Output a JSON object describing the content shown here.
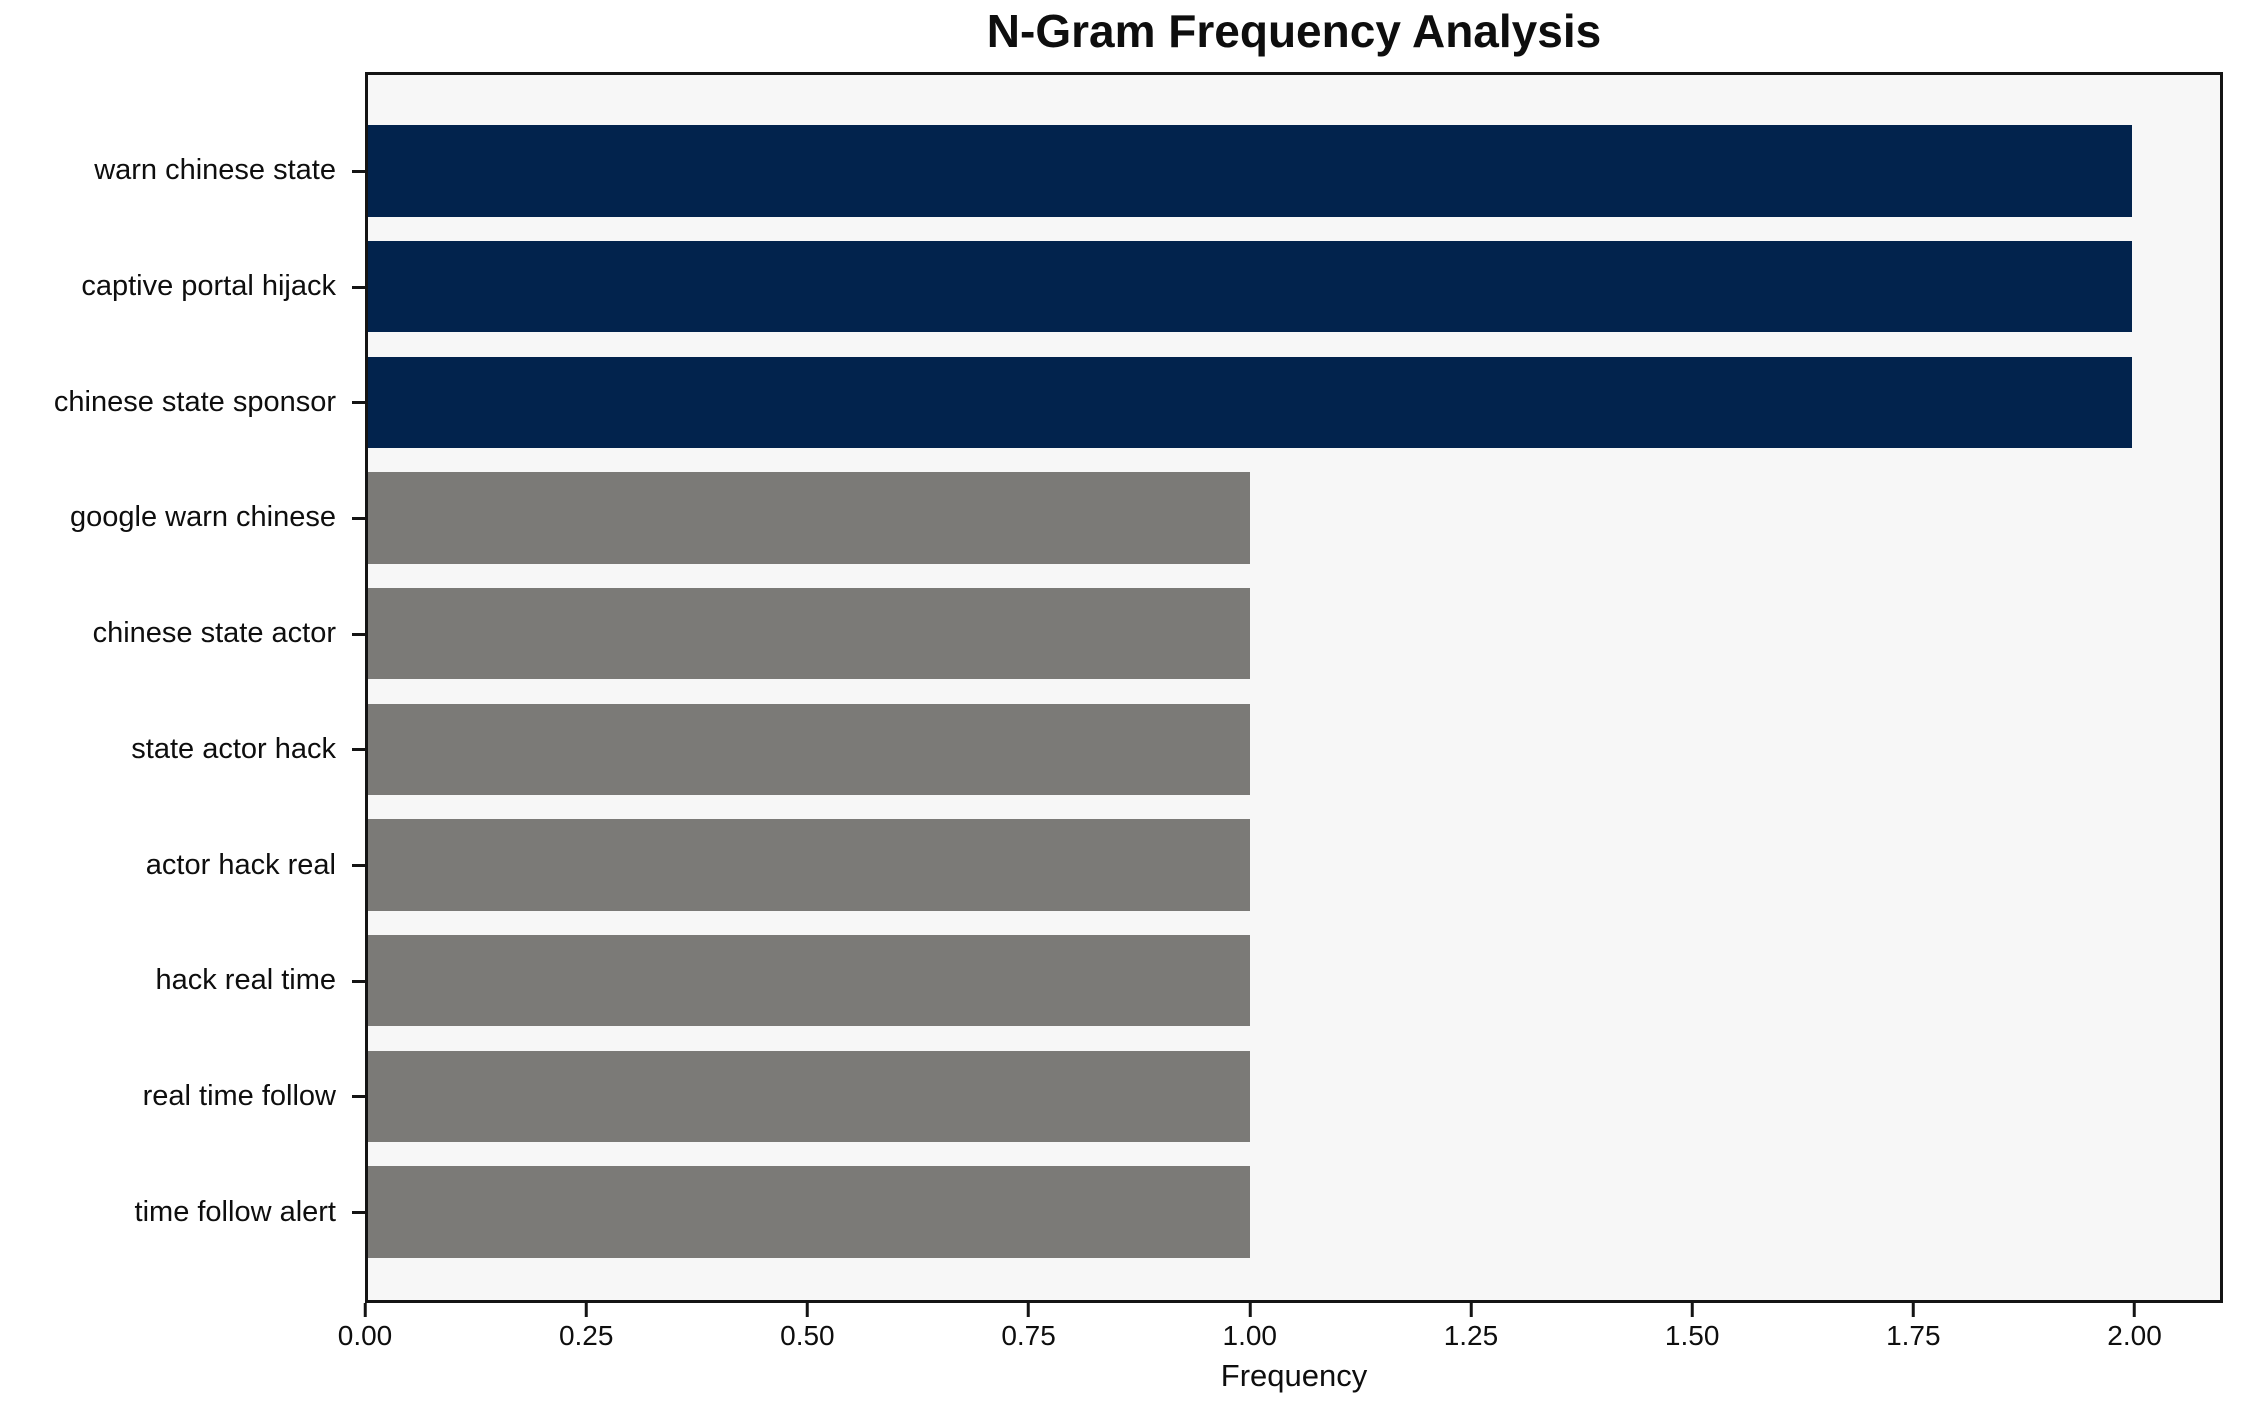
{
  "chart_data": {
    "type": "bar",
    "orientation": "horizontal",
    "title": "N-Gram Frequency Analysis",
    "xlabel": "Frequency",
    "ylabel": "",
    "categories": [
      "warn chinese state",
      "captive portal hijack",
      "chinese state sponsor",
      "google warn chinese",
      "chinese state actor",
      "state actor hack",
      "actor hack real",
      "hack real time",
      "real time follow",
      "time follow alert"
    ],
    "values": [
      2,
      2,
      2,
      1,
      1,
      1,
      1,
      1,
      1,
      1
    ],
    "bar_colors": [
      "#02234d",
      "#02234d",
      "#02234d",
      "#7b7a77",
      "#7b7a77",
      "#7b7a77",
      "#7b7a77",
      "#7b7a77",
      "#7b7a77",
      "#7b7a77"
    ],
    "xlim": [
      0,
      2.1
    ],
    "xtick_values": [
      0,
      0.25,
      0.5,
      0.75,
      1.0,
      1.25,
      1.5,
      1.75,
      2.0
    ],
    "xtick_labels": [
      "0.00",
      "0.25",
      "0.50",
      "0.75",
      "1.00",
      "1.25",
      "1.50",
      "1.75",
      "2.00"
    ],
    "grid": false,
    "legend_position": "none",
    "plot_background": "#f7f7f7",
    "figure_background": "#ffffff",
    "axis_color": "#141414"
  }
}
